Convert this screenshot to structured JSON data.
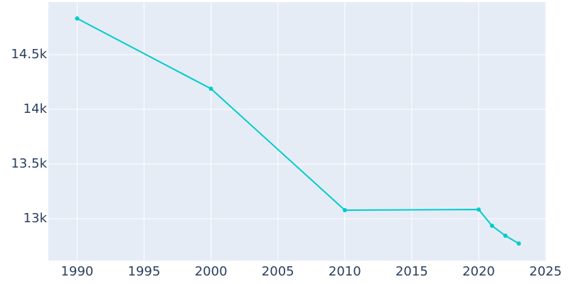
{
  "chart_data": {
    "type": "line",
    "x": [
      1990,
      2000,
      2010,
      2020,
      2021,
      2022,
      2023
    ],
    "series": [
      {
        "color": "#00cccc",
        "values": [
          14831,
          14188,
          13078,
          13084,
          12935,
          12844,
          12773
        ]
      }
    ],
    "xlim": [
      1987.85,
      2025.05
    ],
    "xticks": [
      1990,
      1995,
      2000,
      2005,
      2010,
      2015,
      2020,
      2025
    ],
    "ylim": [
      12617,
      14980
    ],
    "yticks": [
      {
        "value": 13000,
        "label": "13k"
      },
      {
        "value": 13500,
        "label": "13.5k"
      },
      {
        "value": 14000,
        "label": "14k"
      },
      {
        "value": 14500,
        "label": "14.5k"
      }
    ],
    "grid": true,
    "background": "#e5ecf6"
  }
}
